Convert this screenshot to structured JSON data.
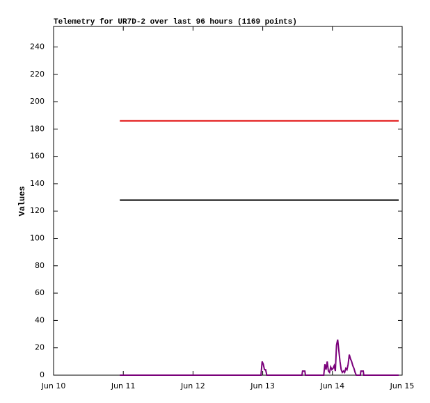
{
  "chart_data": {
    "type": "line",
    "title": "Telemetry for UR7D-2 over last 96 hours (1169 points)",
    "y_label": "Values",
    "xlim": [
      0,
      120
    ],
    "xticks": [
      {
        "value": 0,
        "label": "Jun 10"
      },
      {
        "value": 24,
        "label": "Jun 11"
      },
      {
        "value": 48,
        "label": "Jun 12"
      },
      {
        "value": 72,
        "label": "Jun 13"
      },
      {
        "value": 96,
        "label": "Jun 14"
      },
      {
        "value": 120,
        "label": "Jun 15"
      }
    ],
    "ylim": [
      0,
      255
    ],
    "yticks": [
      0,
      20,
      40,
      60,
      80,
      100,
      120,
      140,
      160,
      180,
      200,
      220,
      240
    ],
    "grid": false,
    "series": [
      {
        "color": "#e00000",
        "x": [
          22.8,
          118.8
        ],
        "values": [
          186,
          186
        ]
      },
      {
        "color": "#000000",
        "x": [
          22.8,
          118.8
        ],
        "values": [
          128,
          128
        ]
      },
      {
        "color": "#7a007a",
        "x": [
          22.8,
          71.4,
          71.8,
          72.2,
          72.6,
          73.0,
          73.4,
          85.5,
          85.7,
          86.5,
          86.7,
          93.0,
          93.4,
          93.8,
          94.2,
          94.6,
          95.0,
          95.4,
          95.8,
          96.2,
          96.6,
          97.0,
          97.4,
          97.8,
          98.2,
          98.6,
          99.0,
          99.4,
          99.8,
          100.2,
          100.6,
          101.0,
          101.4,
          101.8,
          102.2,
          102.6,
          103.0,
          103.4,
          103.8,
          104.2,
          105.6,
          105.8,
          106.6,
          106.8,
          118.8
        ],
        "values": [
          0,
          0,
          10,
          8,
          4,
          4,
          0,
          0,
          3,
          3,
          0,
          0,
          8,
          4,
          10,
          3,
          2,
          6,
          4,
          5,
          7,
          3,
          22,
          26,
          18,
          10,
          4,
          2,
          3,
          2,
          5,
          4,
          8,
          15,
          12,
          10,
          7,
          5,
          2,
          0,
          0,
          3,
          3,
          0,
          0
        ]
      }
    ]
  }
}
